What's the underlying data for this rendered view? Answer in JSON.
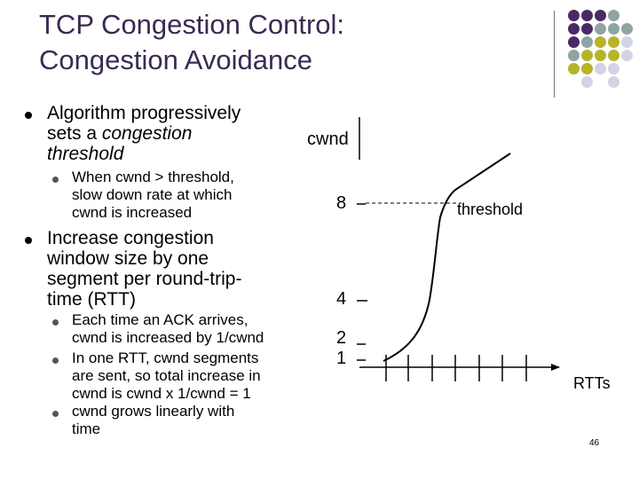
{
  "slide": {
    "title_line1": "TCP Congestion Control:",
    "title_line2": "Congestion Avoidance",
    "page_number": "46"
  },
  "bullets": {
    "b1_line1": "Algorithm progressively",
    "b1_line2_prefix": "sets a ",
    "b1_line2_em": "congestion",
    "b1_line3_em": "threshold",
    "b1_sub1": [
      "When cwnd > threshold,",
      "slow down rate at which",
      "cwnd is increased"
    ],
    "b2": [
      "Increase congestion",
      "window size by one",
      "segment per round-trip-",
      "time (RTT)"
    ],
    "b2_sub1": [
      "Each time an ACK arrives,",
      "cwnd is increased by 1/cwnd"
    ],
    "b2_sub2": [
      "In one RTT, cwnd segments",
      "are sent, so total increase in",
      "cwnd is cwnd x 1/cwnd = 1"
    ],
    "b2_sub3": [
      "cwnd grows linearly with",
      "time"
    ]
  },
  "diagram": {
    "y_axis_label": "cwnd",
    "x_axis_label": "RTTs",
    "threshold_label": "threshold",
    "y_tick_8": "8",
    "y_tick_4": "4",
    "y_tick_2": "2",
    "y_tick_1": "1"
  },
  "colors": {
    "purple": "#4a2a62",
    "olive": "#b5b42a",
    "grey": "#8fa3a3",
    "lavender": "#d4d3e6",
    "title": "#3b2a53"
  }
}
